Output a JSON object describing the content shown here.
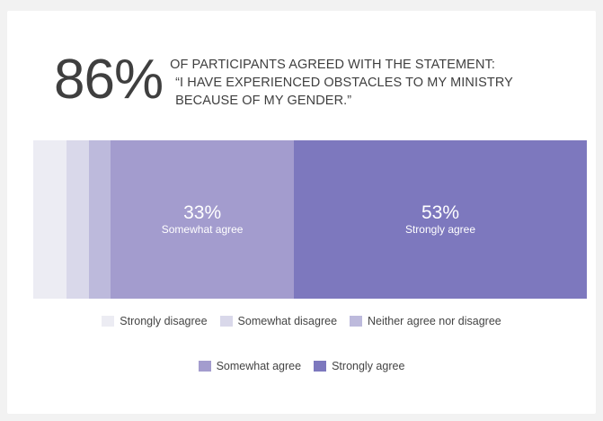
{
  "headline": {
    "percent": "86%",
    "line1": "OF PARTICIPANTS AGREED WITH THE STATEMENT:",
    "line2": "“I HAVE EXPERIENCED OBSTACLES TO MY MINISTRY",
    "line3": "BECAUSE OF MY GENDER.”"
  },
  "chart_data": {
    "type": "bar",
    "orientation": "horizontal-stacked-100",
    "title": "",
    "xlabel": "",
    "ylabel": "",
    "grid": false,
    "legend_position": "bottom",
    "categories": [
      "Strongly disagree",
      "Somewhat disagree",
      "Neither agree nor disagree",
      "Somewhat agree",
      "Strongly agree"
    ],
    "values": [
      6,
      4,
      4,
      33,
      53
    ],
    "colors": [
      "#ececf3",
      "#d9d8ea",
      "#bdbadc",
      "#a39cce",
      "#7d78be"
    ],
    "data_labels": [
      {
        "series_index": 3,
        "percent": "33%",
        "name": "Somewhat agree"
      },
      {
        "series_index": 4,
        "percent": "53%",
        "name": "Strongly agree"
      }
    ]
  },
  "legend": {
    "row1": [
      {
        "label": "Strongly disagree",
        "color": "#ececf3"
      },
      {
        "label": "Somewhat disagree",
        "color": "#d9d8ea"
      },
      {
        "label": "Neither agree nor disagree",
        "color": "#bdbadc"
      }
    ],
    "row2": [
      {
        "label": "Somewhat agree",
        "color": "#a39cce"
      },
      {
        "label": "Strongly agree",
        "color": "#7d78be"
      }
    ]
  }
}
